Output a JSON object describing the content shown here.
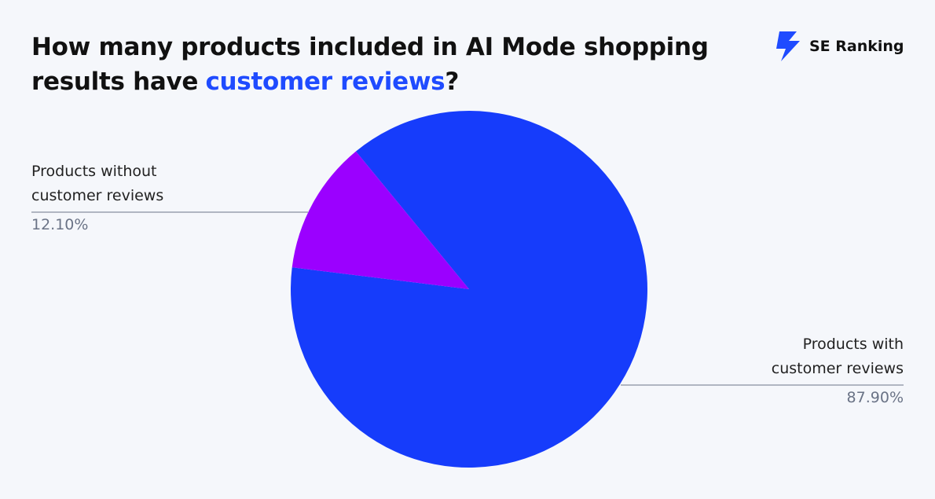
{
  "chart_data": {
    "type": "pie",
    "title": [
      "How many products included in AI Mode shopping results have",
      "customer reviews",
      "?"
    ],
    "logo": "SE Ranking",
    "categories": [
      "Products with customer reviews",
      "Products without customer reviews"
    ],
    "values": [
      87.9,
      12.1
    ],
    "value_labels": [
      "87.90%",
      "12.10%"
    ],
    "colors": [
      "#163cfb",
      "#9b00ff"
    ]
  }
}
